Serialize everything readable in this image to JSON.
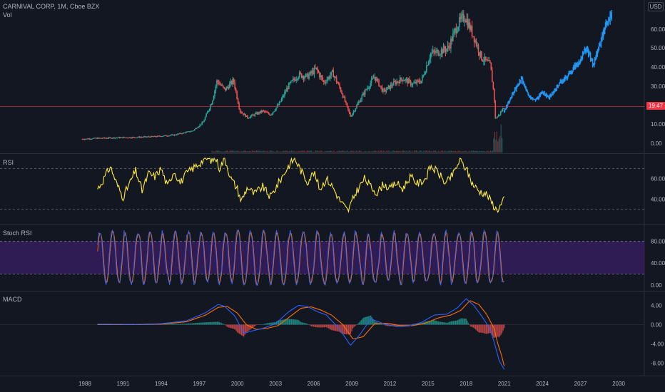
{
  "header": {
    "symbol_line": "CARNIVAL CORP, 1M, Cboe BZX",
    "volume_label": "Vol",
    "currency": "USD"
  },
  "colors": {
    "background": "#131722",
    "up_candle": "#26a69a",
    "down_candle": "#ef5350",
    "projection": "#2196f3",
    "rsi_line": "#ffeb3b",
    "stoch_k": "#2962ff",
    "stoch_d": "#ff6d00",
    "stoch_band": "#3a1f66",
    "macd_line": "#2962ff",
    "signal_line": "#ff6d00",
    "current_price_line": "#f23645",
    "grid_dashed": "#787b86"
  },
  "panes": {
    "rsi_label": "RSI",
    "stoch_label": "Stoch RSI",
    "macd_label": "MACD"
  },
  "current_price": {
    "label": "19.47",
    "value": 19.47
  },
  "chart_data": [
    {
      "type": "candlestick",
      "pane": "price",
      "title": "CARNIVAL CORP, 1M, Cboe BZX",
      "y_ticks": [
        "0.00",
        "10.00",
        "20.00",
        "30.00",
        "40.00",
        "50.00",
        "60.00"
      ],
      "y_scale": "log",
      "x_ticks": [
        "1988",
        "1991",
        "1994",
        "1997",
        "2000",
        "2003",
        "2006",
        "2009",
        "2012",
        "2015",
        "2018",
        "2021",
        "2024",
        "2027",
        "2030"
      ],
      "price_path": [
        [
          1987.8,
          2.2
        ],
        [
          1989.0,
          2.6
        ],
        [
          1990.5,
          2.9
        ],
        [
          1992.0,
          3.1
        ],
        [
          1993.5,
          3.5
        ],
        [
          1995.0,
          4.3
        ],
        [
          1996.5,
          6.5
        ],
        [
          1997.3,
          11.0
        ],
        [
          1998.0,
          22.0
        ],
        [
          1998.4,
          33.0
        ],
        [
          1999.0,
          28.0
        ],
        [
          1999.7,
          33.0
        ],
        [
          2000.2,
          17.0
        ],
        [
          2000.8,
          13.5
        ],
        [
          2001.3,
          15.0
        ],
        [
          2002.0,
          17.0
        ],
        [
          2002.6,
          15.0
        ],
        [
          2003.3,
          21.0
        ],
        [
          2004.0,
          30.0
        ],
        [
          2004.8,
          36.0
        ],
        [
          2005.5,
          35.0
        ],
        [
          2006.2,
          39.0
        ],
        [
          2006.8,
          32.0
        ],
        [
          2007.5,
          37.0
        ],
        [
          2008.2,
          27.0
        ],
        [
          2008.9,
          14.0
        ],
        [
          2009.4,
          20.0
        ],
        [
          2010.0,
          27.0
        ],
        [
          2010.8,
          35.0
        ],
        [
          2011.5,
          27.0
        ],
        [
          2012.2,
          31.0
        ],
        [
          2013.0,
          34.0
        ],
        [
          2013.8,
          31.0
        ],
        [
          2014.5,
          33.0
        ],
        [
          2015.2,
          47.0
        ],
        [
          2015.9,
          48.0
        ],
        [
          2016.6,
          50.0
        ],
        [
          2017.3,
          62.0
        ],
        [
          2017.9,
          67.0
        ],
        [
          2018.6,
          56.0
        ],
        [
          2019.2,
          45.0
        ],
        [
          2019.9,
          41.0
        ],
        [
          2020.2,
          25.0
        ],
        [
          2020.3,
          13.0
        ],
        [
          2020.6,
          15.0
        ],
        [
          2021.0,
          19.47
        ]
      ],
      "volume_note": "Vol"
    },
    {
      "type": "line",
      "pane": "price",
      "series": [
        {
          "name": "",
          "color": "#2196f3"
        }
      ],
      "projection_path": [
        [
          2021.0,
          17.0
        ],
        [
          2021.5,
          24.0
        ],
        [
          2022.0,
          30.0
        ],
        [
          2022.4,
          34.0
        ],
        [
          2022.9,
          25.0
        ],
        [
          2023.5,
          23.0
        ],
        [
          2024.0,
          27.0
        ],
        [
          2024.5,
          24.0
        ],
        [
          2025.0,
          28.0
        ],
        [
          2025.5,
          33.0
        ],
        [
          2026.0,
          35.0
        ],
        [
          2026.5,
          40.0
        ],
        [
          2027.0,
          44.0
        ],
        [
          2027.5,
          50.0
        ],
        [
          2028.0,
          41.0
        ],
        [
          2028.5,
          52.0
        ],
        [
          2029.0,
          62.0
        ],
        [
          2029.5,
          68.0
        ]
      ]
    },
    {
      "type": "line",
      "pane": "rsi",
      "title": "RSI",
      "y_ticks": [
        "40.00",
        "60.00"
      ],
      "bands": [
        30,
        70
      ],
      "ylim": [
        20,
        80
      ],
      "series": [
        {
          "name": "",
          "color": "#ffeb3b",
          "points": [
            [
              1989.0,
              50
            ],
            [
              1989.5,
              60
            ],
            [
              1990.0,
              72
            ],
            [
              1990.5,
              55
            ],
            [
              1991.0,
              42
            ],
            [
              1991.5,
              55
            ],
            [
              1992.0,
              68
            ],
            [
              1992.5,
              48
            ],
            [
              1993.0,
              65
            ],
            [
              1993.5,
              62
            ],
            [
              1994.0,
              70
            ],
            [
              1994.5,
              52
            ],
            [
              1995.0,
              68
            ],
            [
              1995.5,
              56
            ],
            [
              1996.0,
              65
            ],
            [
              1996.5,
              70
            ],
            [
              1997.0,
              75
            ],
            [
              1997.5,
              80
            ],
            [
              1998.0,
              78
            ],
            [
              1998.3,
              80
            ],
            [
              1998.6,
              70
            ],
            [
              1999.0,
              80
            ],
            [
              1999.5,
              60
            ],
            [
              2000.0,
              50
            ],
            [
              2000.3,
              38
            ],
            [
              2000.8,
              52
            ],
            [
              2001.3,
              45
            ],
            [
              2002.0,
              52
            ],
            [
              2002.6,
              42
            ],
            [
              2003.2,
              55
            ],
            [
              2004.0,
              72
            ],
            [
              2004.5,
              80
            ],
            [
              2005.0,
              68
            ],
            [
              2005.5,
              57
            ],
            [
              2006.0,
              66
            ],
            [
              2006.5,
              50
            ],
            [
              2007.0,
              60
            ],
            [
              2007.5,
              52
            ],
            [
              2008.0,
              40
            ],
            [
              2008.7,
              28
            ],
            [
              2009.3,
              46
            ],
            [
              2010.0,
              60
            ],
            [
              2010.5,
              52
            ],
            [
              2011.0,
              46
            ],
            [
              2011.5,
              55
            ],
            [
              2012.0,
              50
            ],
            [
              2012.5,
              56
            ],
            [
              2013.0,
              50
            ],
            [
              2013.6,
              62
            ],
            [
              2014.2,
              55
            ],
            [
              2014.8,
              60
            ],
            [
              2015.2,
              72
            ],
            [
              2015.8,
              66
            ],
            [
              2016.4,
              55
            ],
            [
              2017.0,
              65
            ],
            [
              2017.5,
              78
            ],
            [
              2018.0,
              70
            ],
            [
              2018.5,
              55
            ],
            [
              2019.0,
              48
            ],
            [
              2019.6,
              45
            ],
            [
              2020.1,
              35
            ],
            [
              2020.4,
              29
            ],
            [
              2020.8,
              35
            ],
            [
              2021.0,
              40
            ]
          ]
        }
      ]
    },
    {
      "type": "line",
      "pane": "stoch_rsi",
      "title": "Stoch RSI",
      "y_ticks": [
        "0.00",
        "40.00",
        "80.00"
      ],
      "bands": [
        20,
        80
      ],
      "ylim": [
        0,
        100
      ],
      "series": [
        {
          "name": "",
          "color": "#2962ff"
        },
        {
          "name": "",
          "color": "#ff6d00"
        }
      ]
    },
    {
      "type": "line",
      "pane": "macd",
      "title": "MACD",
      "y_ticks": [
        "-8.00",
        "-4.00",
        "0.00",
        "4.00"
      ],
      "ylim": [
        -10,
        6
      ],
      "series": [
        {
          "name": "",
          "color": "#2962ff",
          "points": [
            [
              1989.0,
              0.1
            ],
            [
              1992.0,
              0.05
            ],
            [
              1994.0,
              0.2
            ],
            [
              1996.0,
              0.8
            ],
            [
              1997.5,
              2.5
            ],
            [
              1998.5,
              4.2
            ],
            [
              1999.0,
              3.8
            ],
            [
              1999.8,
              1.8
            ],
            [
              2000.5,
              -1.8
            ],
            [
              2001.3,
              -1.2
            ],
            [
              2002.0,
              -0.8
            ],
            [
              2003.0,
              0.2
            ],
            [
              2004.0,
              2.6
            ],
            [
              2004.8,
              4.0
            ],
            [
              2005.5,
              3.8
            ],
            [
              2006.2,
              2.8
            ],
            [
              2007.0,
              2.0
            ],
            [
              2008.0,
              -0.8
            ],
            [
              2008.9,
              -4.3
            ],
            [
              2009.6,
              -2.2
            ],
            [
              2010.5,
              1.2
            ],
            [
              2011.5,
              0.2
            ],
            [
              2012.5,
              -0.4
            ],
            [
              2013.5,
              -0.3
            ],
            [
              2014.5,
              0.5
            ],
            [
              2015.5,
              2.0
            ],
            [
              2016.5,
              2.2
            ],
            [
              2017.3,
              3.5
            ],
            [
              2018.0,
              5.4
            ],
            [
              2018.6,
              4.0
            ],
            [
              2019.3,
              1.5
            ],
            [
              2019.9,
              -1.0
            ],
            [
              2020.3,
              -4.5
            ],
            [
              2020.6,
              -7.5
            ],
            [
              2021.0,
              -9.3
            ]
          ]
        },
        {
          "name": "",
          "color": "#ff6d00",
          "points": [
            [
              1989.0,
              0.0
            ],
            [
              1992.0,
              0.0
            ],
            [
              1994.0,
              0.1
            ],
            [
              1996.0,
              0.6
            ],
            [
              1997.5,
              2.0
            ],
            [
              1998.5,
              3.6
            ],
            [
              1999.2,
              3.8
            ],
            [
              2000.0,
              2.4
            ],
            [
              2000.7,
              0.0
            ],
            [
              2001.5,
              -1.0
            ],
            [
              2002.3,
              -0.8
            ],
            [
              2003.2,
              -0.2
            ],
            [
              2004.2,
              1.8
            ],
            [
              2005.0,
              3.4
            ],
            [
              2005.8,
              3.7
            ],
            [
              2006.6,
              3.0
            ],
            [
              2007.4,
              2.0
            ],
            [
              2008.3,
              0.0
            ],
            [
              2009.1,
              -3.0
            ],
            [
              2009.9,
              -2.5
            ],
            [
              2010.8,
              0.2
            ],
            [
              2011.8,
              0.3
            ],
            [
              2012.8,
              -0.2
            ],
            [
              2013.8,
              -0.2
            ],
            [
              2014.8,
              0.3
            ],
            [
              2015.8,
              1.4
            ],
            [
              2016.8,
              2.0
            ],
            [
              2017.6,
              3.0
            ],
            [
              2018.3,
              5.0
            ],
            [
              2019.0,
              4.2
            ],
            [
              2019.6,
              2.2
            ],
            [
              2020.2,
              -0.8
            ],
            [
              2020.5,
              -4.0
            ],
            [
              2020.8,
              -6.5
            ],
            [
              2021.0,
              -8.6
            ]
          ]
        }
      ]
    }
  ]
}
